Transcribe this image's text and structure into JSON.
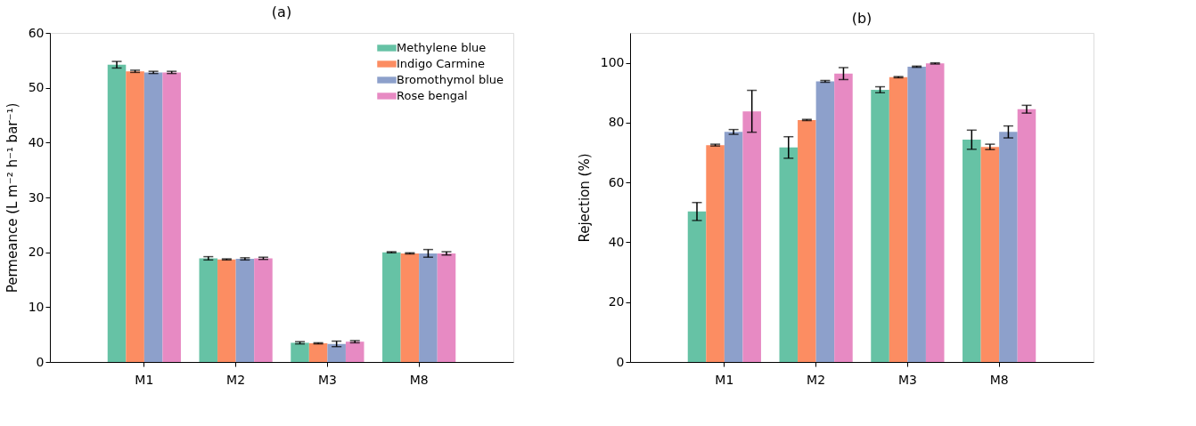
{
  "chart_data": [
    {
      "type": "bar",
      "title": "(a)",
      "ylabel": "Permeance (L m⁻² h⁻¹ bar⁻¹)",
      "categories": [
        "M1",
        "M2",
        "M3",
        "M8"
      ],
      "ylim": [
        0,
        60
      ],
      "yticks": [
        0,
        10,
        20,
        30,
        40,
        50,
        60
      ],
      "grid": false,
      "legend": "top right",
      "series": [
        {
          "name": "Methylene blue",
          "color": "#66c2a5",
          "values": [
            54.2,
            18.9,
            3.5,
            20.0
          ],
          "errors": [
            0.6,
            0.3,
            0.2,
            0.1
          ]
        },
        {
          "name": "Indigo Carmine",
          "color": "#fc8d62",
          "values": [
            53.0,
            18.7,
            3.4,
            19.8
          ],
          "errors": [
            0.2,
            0.1,
            0.1,
            0.1
          ]
        },
        {
          "name": "Bromothymol blue",
          "color": "#8da0cb",
          "values": [
            52.8,
            18.8,
            3.3,
            19.8
          ],
          "errors": [
            0.2,
            0.2,
            0.5,
            0.7
          ]
        },
        {
          "name": "Rose bengal",
          "color": "#e78ac3",
          "values": [
            52.8,
            18.9,
            3.7,
            19.8
          ],
          "errors": [
            0.2,
            0.2,
            0.2,
            0.3
          ]
        }
      ]
    },
    {
      "type": "bar",
      "title": "(b)",
      "ylabel": "Rejection (%)",
      "categories": [
        "M1",
        "M2",
        "M3",
        "M8"
      ],
      "ylim": [
        0,
        110
      ],
      "yticks": [
        0,
        20,
        40,
        60,
        80,
        100
      ],
      "grid": false,
      "legend": false,
      "series": [
        {
          "color": "#66c2a5",
          "values": [
            50.3,
            71.7,
            91.0,
            74.3
          ],
          "errors": [
            3.0,
            3.6,
            1.0,
            3.2
          ]
        },
        {
          "color": "#fc8d62",
          "values": [
            72.5,
            80.9,
            95.2,
            71.9
          ],
          "errors": [
            0.3,
            0.2,
            0.2,
            0.9
          ]
        },
        {
          "color": "#8da0cb",
          "values": [
            76.9,
            93.8,
            98.7,
            76.9
          ],
          "errors": [
            0.8,
            0.3,
            0.2,
            2.0
          ]
        },
        {
          "color": "#e78ac3",
          "values": [
            83.8,
            96.4,
            99.8,
            84.5
          ],
          "errors": [
            7.0,
            2.0,
            0.2,
            1.3
          ]
        }
      ]
    }
  ]
}
